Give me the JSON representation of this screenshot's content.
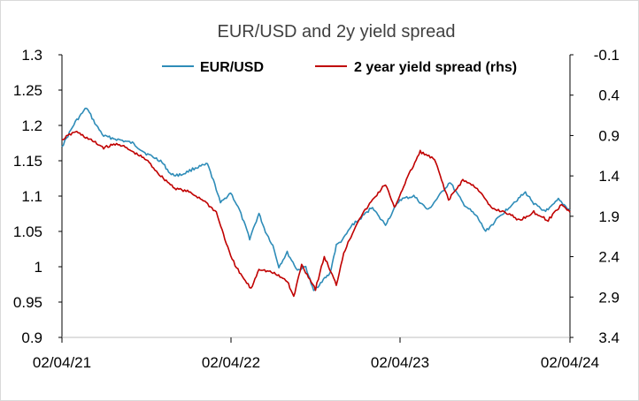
{
  "chart_data": {
    "type": "line",
    "title": "EUR/USD and 2y yield spread",
    "xlabel": "",
    "ylabel": "",
    "x_ticks": [
      "02/04/21",
      "02/04/22",
      "02/04/23",
      "02/04/24"
    ],
    "ylim": [
      0.9,
      1.3
    ],
    "y_ticks": [
      "1.3",
      "1.25",
      "1.2",
      "1.15",
      "1.1",
      "1.05",
      "1",
      "0.95",
      "0.9"
    ],
    "y2lim": [
      -0.1,
      3.4
    ],
    "y2_inverted": true,
    "y2_ticks": [
      "-0.1",
      "0.4",
      "0.9",
      "1.4",
      "1.9",
      "2.4",
      "2.9",
      "3.4"
    ],
    "legend_position": "top",
    "grid": false,
    "series": [
      {
        "name": "EUR/USD",
        "axis": "left",
        "color": "#2e8cb8",
        "x": [
          "2021-04-02",
          "2021-05-01",
          "2021-05-25",
          "2021-06-15",
          "2021-07-01",
          "2021-08-01",
          "2021-09-01",
          "2021-10-01",
          "2021-11-01",
          "2021-11-24",
          "2021-12-15",
          "2022-01-15",
          "2022-02-10",
          "2022-03-01",
          "2022-03-10",
          "2022-04-01",
          "2022-04-20",
          "2022-05-12",
          "2022-06-01",
          "2022-06-15",
          "2022-07-01",
          "2022-07-14",
          "2022-08-01",
          "2022-08-23",
          "2022-09-10",
          "2022-09-27",
          "2022-10-15",
          "2022-11-01",
          "2022-11-15",
          "2022-12-01",
          "2022-12-20",
          "2023-01-01",
          "2023-02-01",
          "2023-02-15",
          "2023-03-01",
          "2023-04-01",
          "2023-05-01",
          "2023-06-01",
          "2023-07-18",
          "2023-08-15",
          "2023-09-15",
          "2023-10-03",
          "2023-11-01",
          "2023-12-01",
          "2023-12-28",
          "2024-01-15",
          "2024-02-01",
          "2024-02-15",
          "2024-03-08",
          "2024-04-02"
        ],
        "y": [
          1.17,
          1.205,
          1.225,
          1.2,
          1.185,
          1.18,
          1.175,
          1.16,
          1.15,
          1.13,
          1.13,
          1.14,
          1.145,
          1.11,
          1.09,
          1.105,
          1.08,
          1.04,
          1.075,
          1.05,
          1.03,
          1.0,
          1.02,
          0.995,
          1.0,
          0.965,
          0.98,
          0.99,
          1.03,
          1.04,
          1.06,
          1.065,
          1.085,
          1.07,
          1.06,
          1.095,
          1.1,
          1.08,
          1.12,
          1.09,
          1.07,
          1.05,
          1.07,
          1.09,
          1.105,
          1.09,
          1.08,
          1.08,
          1.095,
          1.08
        ]
      },
      {
        "name": "2 year yield spread (rhs)",
        "axis": "right",
        "color": "#c00000",
        "x": [
          "2021-04-02",
          "2021-05-01",
          "2021-06-01",
          "2021-07-01",
          "2021-08-01",
          "2021-09-01",
          "2021-10-01",
          "2021-11-01",
          "2021-12-01",
          "2022-01-01",
          "2022-02-01",
          "2022-03-01",
          "2022-04-01",
          "2022-04-20",
          "2022-05-15",
          "2022-06-01",
          "2022-07-01",
          "2022-08-01",
          "2022-08-15",
          "2022-09-01",
          "2022-10-01",
          "2022-10-20",
          "2022-11-15",
          "2022-12-01",
          "2023-01-01",
          "2023-02-01",
          "2023-03-01",
          "2023-03-20",
          "2023-04-15",
          "2023-05-15",
          "2023-06-15",
          "2023-07-15",
          "2023-08-15",
          "2023-09-15",
          "2023-10-15",
          "2023-11-15",
          "2023-12-15",
          "2024-01-15",
          "2024-02-15",
          "2024-03-15",
          "2024-04-02"
        ],
        "y": [
          0.95,
          0.85,
          0.95,
          1.05,
          1.0,
          1.1,
          1.2,
          1.4,
          1.55,
          1.6,
          1.7,
          1.85,
          2.4,
          2.6,
          2.8,
          2.55,
          2.6,
          2.7,
          2.9,
          2.5,
          2.8,
          2.4,
          2.75,
          2.35,
          1.95,
          1.7,
          1.5,
          1.8,
          1.45,
          1.1,
          1.2,
          1.7,
          1.45,
          1.55,
          1.8,
          1.85,
          1.95,
          1.85,
          1.95,
          1.75,
          1.85
        ]
      }
    ]
  }
}
